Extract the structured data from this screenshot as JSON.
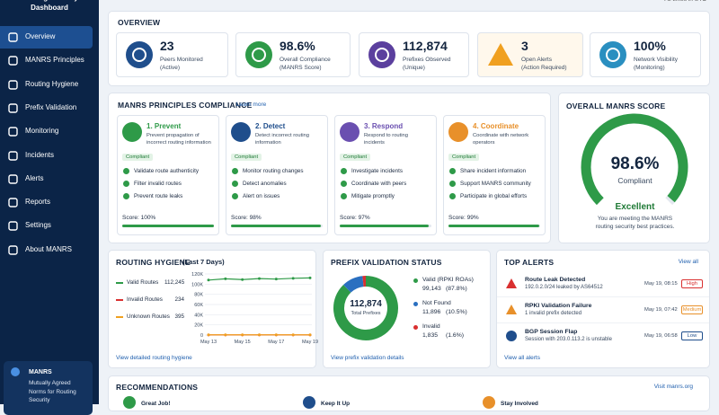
{
  "sidebar": {
    "title": "Routing Security Dashboard",
    "nav": [
      "Overview",
      "MANRS Principles",
      "Routing Hygiene",
      "Prefix Validation",
      "Monitoring",
      "Incidents",
      "Alerts",
      "Reports",
      "Settings",
      "About MANRS"
    ],
    "info": {
      "title": "MANRS",
      "text": "Mutually Agreed Norms for Routing Security"
    }
  },
  "header": {
    "note": "All times in UTC"
  },
  "overview": {
    "title": "OVERVIEW",
    "cards": [
      {
        "value": "23",
        "label": "Peers Monitored",
        "sub": "(Active)",
        "color": "#1f4e8c"
      },
      {
        "value": "98.6%",
        "label": "Overall Compliance",
        "sub": "(MANRS Score)",
        "color": "#2e9a48"
      },
      {
        "value": "112,874",
        "label": "Prefixes Observed",
        "sub": "(Unique)",
        "color": "#5b3f9e"
      },
      {
        "value": "3",
        "label": "Open Alerts",
        "sub": "(Action Required)",
        "color": "#f0a020"
      },
      {
        "value": "100%",
        "label": "Network Visibility",
        "sub": "(Monitoring)",
        "color": "#2a8fc0"
      }
    ]
  },
  "compliance": {
    "title": "MANRS PRINCIPLES COMPLIANCE",
    "link": "Learn more",
    "principles": [
      {
        "name": "1. Prevent",
        "desc": [
          "Prevent propagation of",
          "incorrect routing information"
        ],
        "badge": "Compliant",
        "items": [
          "Validate route authenticity",
          "Filter invalid routes",
          "Prevent route leaks"
        ],
        "score": 100,
        "score_label": "Score: 100%",
        "color": "#2e9a48"
      },
      {
        "name": "2. Detect",
        "desc": [
          "Detect incorrect routing",
          "information"
        ],
        "badge": "Compliant",
        "items": [
          "Monitor routing changes",
          "Detect anomalies",
          "Alert on issues"
        ],
        "score": 98,
        "score_label": "Score: 98%",
        "color": "#1f4e8c"
      },
      {
        "name": "3. Respond",
        "desc": [
          "Respond to routing",
          "incidents"
        ],
        "badge": "Compliant",
        "items": [
          "Investigate incidents",
          "Coordinate with peers",
          "Mitigate promptly"
        ],
        "score": 97,
        "score_label": "Score: 97%",
        "color": "#6a4fb0"
      },
      {
        "name": "4. Coordinate",
        "desc": [
          "Coordinate with network",
          "operators"
        ],
        "badge": "Compliant",
        "items": [
          "Share incident information",
          "Support MANRS community",
          "Participate in global efforts"
        ],
        "score": 99,
        "score_label": "Score: 99%",
        "color": "#e8902a"
      }
    ]
  },
  "score": {
    "title": "OVERALL MANRS SCORE",
    "value": 98.6,
    "value_label": "98.6%",
    "max": 100,
    "sub": "Compliant",
    "status": "Excellent",
    "desc": [
      "You are meeting the MANRS",
      "routing security best practices."
    ],
    "color": "#2e9a48"
  },
  "hygiene": {
    "title": "ROUTING HYGIENE",
    "subtitle": "(Last 7 Days)",
    "link": "View detailed routing hygiene",
    "chart_data": {
      "type": "line",
      "categories": [
        "May 13",
        null,
        "May 15",
        null,
        "May 17",
        null,
        "May 19"
      ],
      "ylim": [
        0,
        120000
      ],
      "yticks": [
        {
          "value": 0,
          "label": "0"
        },
        {
          "value": 20000,
          "label": "20K"
        },
        {
          "value": 40000,
          "label": "40K"
        },
        {
          "value": 60000,
          "label": "60K"
        },
        {
          "value": 80000,
          "label": "80K"
        },
        {
          "value": 100000,
          "label": "100K"
        },
        {
          "value": 120000,
          "label": "120K"
        }
      ],
      "grid": true,
      "series": [
        {
          "name": "Valid Routes",
          "total": "112,245",
          "color": "#2e9a48",
          "values": [
            108000,
            110500,
            109000,
            111000,
            110000,
            111500,
            112245
          ]
        },
        {
          "name": "Invalid Routes",
          "total": "234",
          "color": "#d93030",
          "values": [
            260,
            240,
            250,
            230,
            245,
            238,
            234
          ]
        },
        {
          "name": "Unknown Routes",
          "total": "395",
          "color": "#f0a020",
          "values": [
            420,
            410,
            400,
            405,
            398,
            400,
            395
          ]
        }
      ]
    }
  },
  "prefix": {
    "title": "PREFIX VALIDATION STATUS",
    "total": "112,874",
    "total_label": "Total Prefixes",
    "link": "View prefix validation details",
    "chart_data": {
      "type": "donut",
      "series": [
        {
          "name": "Valid (RPKI ROAs)",
          "value": 99143,
          "value_label": "99,143",
          "share": "(87.8%)",
          "color": "#2e9a48"
        },
        {
          "name": "Not Found",
          "value": 11896,
          "value_label": "11,896",
          "share": "(10.5%)",
          "color": "#2a6fc0"
        },
        {
          "name": "Invalid",
          "value": 1835,
          "value_label": "1,835",
          "share": "(1.6%)",
          "color": "#d93030"
        }
      ]
    }
  },
  "alerts": {
    "title": "TOP ALERTS",
    "view_all": "View all",
    "link": "View all alerts",
    "items": [
      {
        "title": "Route Leak Detected",
        "detail": "192.0.2.0/24 leaked by AS64512",
        "time": "May 19, 08:15",
        "level": "High",
        "color": "#d93030"
      },
      {
        "title": "RPKI Validation Failure",
        "detail": "1 invalid prefix detected",
        "time": "May 19, 07:42",
        "level": "Medium",
        "color": "#e8902a"
      },
      {
        "title": "BGP Session Flap",
        "detail": "Session with 203.0.113.2 is unstable",
        "time": "May 19, 06:58",
        "level": "Low",
        "color": "#1f4e8c"
      }
    ]
  },
  "recommendations": {
    "title": "RECOMMENDATIONS",
    "link": "Visit manrs.org",
    "items": [
      "Great Job!",
      "Keep It Up",
      "Stay Involved"
    ]
  }
}
